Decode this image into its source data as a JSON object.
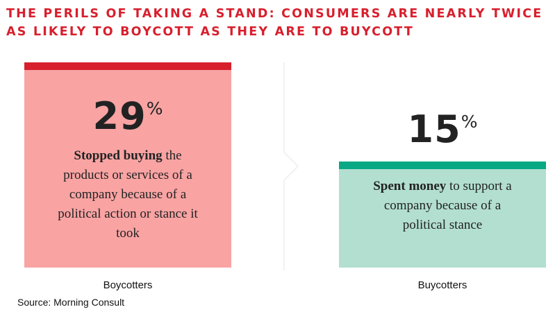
{
  "header": {
    "title_line1": "THE PERILS OF TAKING A STAND: CONSUMERS ARE NEARLY TWICE",
    "title_line2": "AS LIKELY TO BOYCOTT AS THEY ARE TO BUYCOTT"
  },
  "chart_data": {
    "type": "bar",
    "title": "THE PERILS OF TAKING A STAND: CONSUMERS ARE NEARLY TWICE AS LIKELY TO BOYCOTT AS THEY ARE TO BUYCOTT",
    "categories": [
      "Boycotters",
      "Buycotters"
    ],
    "values": [
      29,
      15
    ],
    "value_labels": [
      "29",
      "15"
    ],
    "unit": "%",
    "descriptions": [
      {
        "bold": "Stopped buying",
        "rest": " the products or services of a company because of a political action or stance it took"
      },
      {
        "bold": "Spent money",
        "rest": " to support a company because of a political stance"
      }
    ],
    "colors": [
      {
        "fill": "#f9a3a3",
        "cap": "#d81f2d"
      },
      {
        "fill": "#b2dfcf",
        "cap": "#07a883"
      }
    ],
    "ylim": [
      0,
      29
    ],
    "grid": false,
    "legend": "none"
  },
  "footer": {
    "source": "Source: Morning Consult"
  }
}
